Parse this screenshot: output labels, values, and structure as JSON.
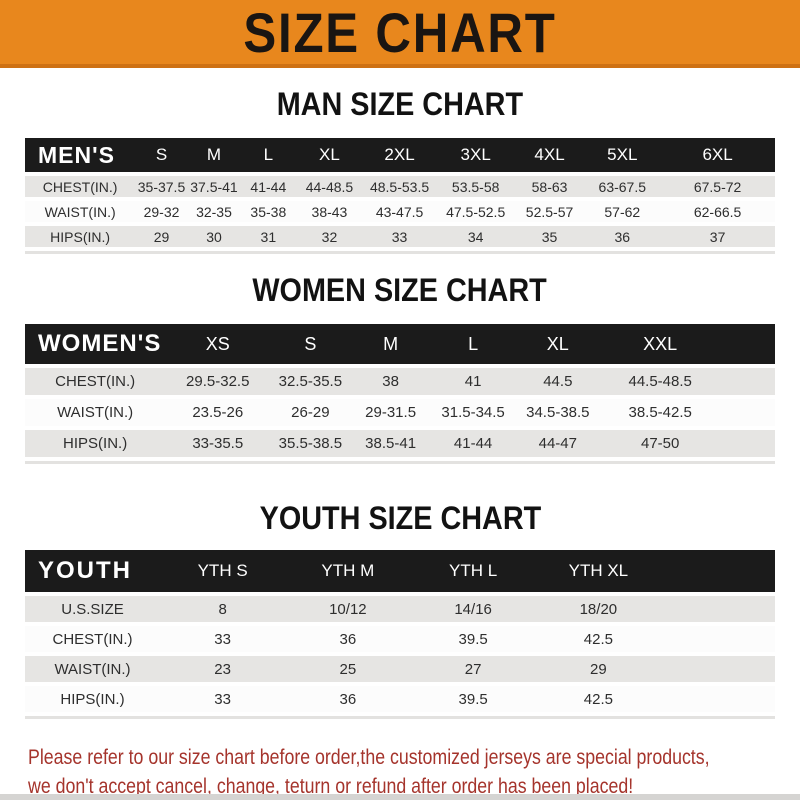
{
  "banner": {
    "title": "SIZE CHART",
    "bg_color": "#E8871D",
    "border_color": "#CE7113",
    "text_color": "#1A1512"
  },
  "sections": [
    {
      "id": "men",
      "heading": "MAN SIZE CHART",
      "corner_label": "MEN'S",
      "columns": [
        "S",
        "M",
        "L",
        "XL",
        "2XL",
        "3XL",
        "4XL",
        "5XL",
        "6XL"
      ],
      "rows": [
        {
          "label": "CHEST(IN.)",
          "values": [
            "35-37.5",
            "37.5-41",
            "41-44",
            "44-48.5",
            "48.5-53.5",
            "53.5-58",
            "58-63",
            "63-67.5",
            "67.5-72"
          ]
        },
        {
          "label": "WAIST(IN.)",
          "values": [
            "29-32",
            "32-35",
            "35-38",
            "38-43",
            "43-47.5",
            "47.5-52.5",
            "52.5-57",
            "57-62",
            "62-66.5"
          ]
        },
        {
          "label": "HIPS(IN.)",
          "values": [
            "29",
            "30",
            "31",
            "32",
            "33",
            "34",
            "35",
            "36",
            "37"
          ]
        }
      ]
    },
    {
      "id": "women",
      "heading": "WOMEN SIZE CHART",
      "corner_label": "WOMEN'S",
      "columns": [
        "XS",
        "S",
        "M",
        "L",
        "XL",
        "XXL"
      ],
      "rows": [
        {
          "label": "CHEST(IN.)",
          "values": [
            "29.5-32.5",
            "32.5-35.5",
            "38",
            "41",
            "44.5",
            "44.5-48.5"
          ]
        },
        {
          "label": "WAIST(IN.)",
          "values": [
            "23.5-26",
            "26-29",
            "29-31.5",
            "31.5-34.5",
            "34.5-38.5",
            "38.5-42.5"
          ]
        },
        {
          "label": "HIPS(IN.)",
          "values": [
            "33-35.5",
            "35.5-38.5",
            "38.5-41",
            "41-44",
            "44-47",
            "47-50"
          ]
        }
      ]
    },
    {
      "id": "youth",
      "heading": "YOUTH SIZE CHART",
      "corner_label": "YOUTH",
      "columns": [
        "YTH S",
        "YTH M",
        "YTH L",
        "YTH XL"
      ],
      "rows": [
        {
          "label": "U.S.SIZE",
          "values": [
            "8",
            "10/12",
            "14/16",
            "18/20"
          ]
        },
        {
          "label": "CHEST(IN.)",
          "values": [
            "33",
            "36",
            "39.5",
            "42.5"
          ]
        },
        {
          "label": "WAIST(IN.)",
          "values": [
            "23",
            "25",
            "27",
            "29"
          ]
        },
        {
          "label": "HIPS(IN.)",
          "values": [
            "33",
            "36",
            "39.5",
            "42.5"
          ]
        }
      ]
    }
  ],
  "disclaimer": {
    "lines": [
      "Please refer to our size chart before order,the customized jerseys are special products,",
      "we don't accept cancel, change, teturn or refund after order has been placed!"
    ],
    "text_color": "#A5342C"
  },
  "colors": {
    "header_bar": "#1B1B1B",
    "row_gray": "#E6E5E3",
    "row_white": "#FCFCFC",
    "bottom_strip": "#D5D4D2"
  }
}
